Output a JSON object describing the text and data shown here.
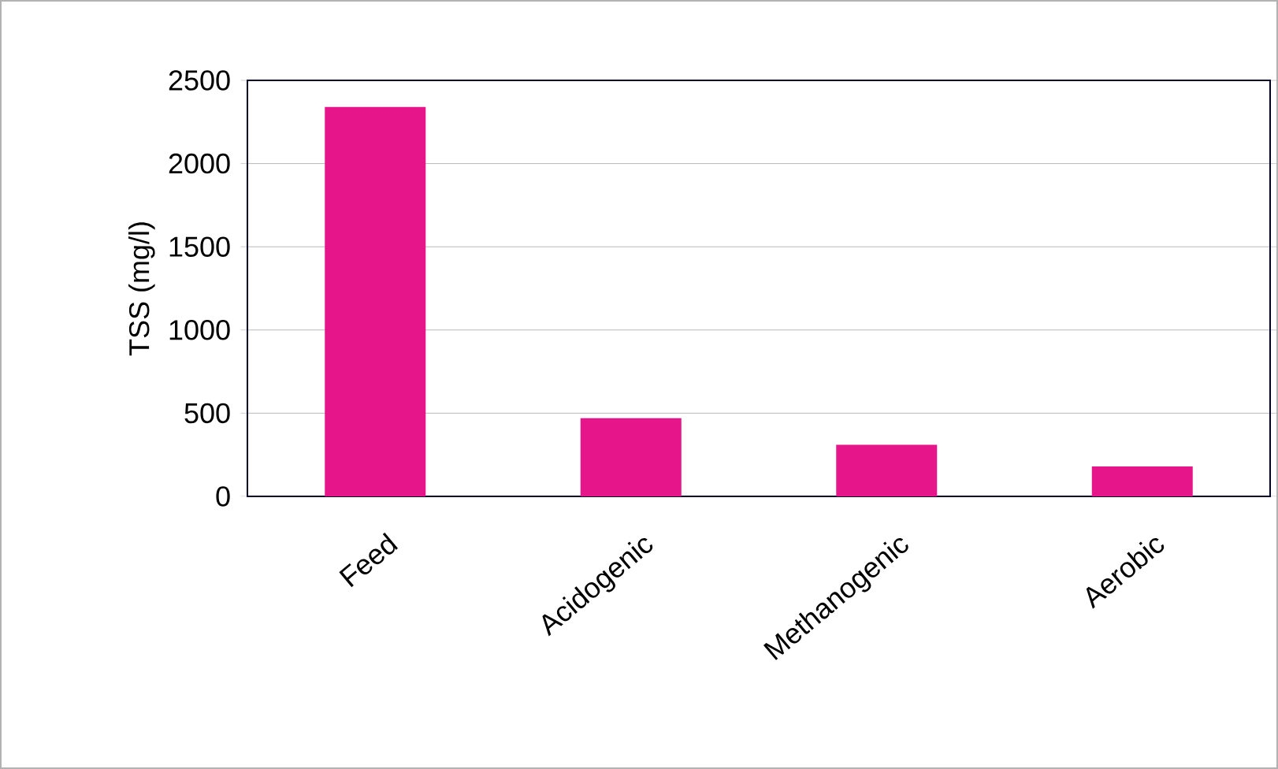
{
  "chart_data": {
    "type": "bar",
    "ylabel": "TSS (mg/l)",
    "categories": [
      "Feed",
      "Acidogenic",
      "Methanogenic",
      "Aerobic"
    ],
    "values": [
      2340,
      470,
      310,
      180
    ],
    "color": "#e6158a",
    "ylim": [
      0,
      2500
    ],
    "yticks": [
      0,
      500,
      1000,
      1500,
      2000,
      2500
    ],
    "grid": "y"
  }
}
